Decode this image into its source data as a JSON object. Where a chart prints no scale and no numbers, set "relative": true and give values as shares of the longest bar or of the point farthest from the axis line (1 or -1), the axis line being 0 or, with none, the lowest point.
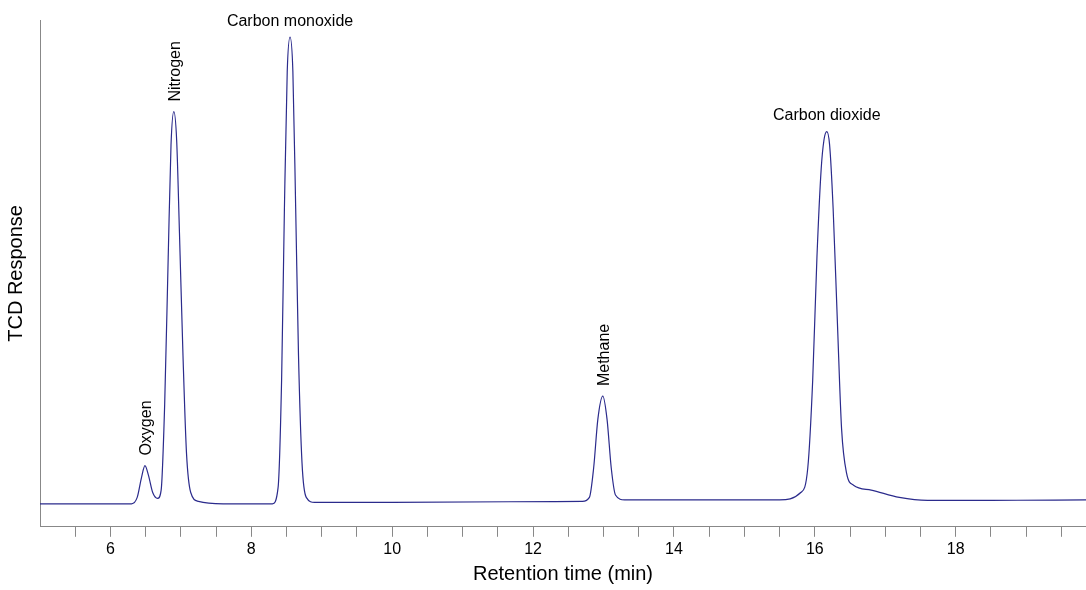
{
  "chart_data": {
    "type": "line",
    "relative": true,
    "xlabel": "Retention time (min)",
    "ylabel": "TCD Response",
    "marker": "none",
    "line_style": "solid",
    "grid": false,
    "legend": false,
    "xlim": [
      5,
      19.85
    ],
    "xticks": [
      {
        "value": 5.5,
        "label": null
      },
      6,
      {
        "value": 6.5,
        "label": null
      },
      {
        "value": 7,
        "label": null
      },
      {
        "value": 7.5,
        "label": null
      },
      8,
      {
        "value": 8.5,
        "label": null
      },
      {
        "value": 9,
        "label": null
      },
      {
        "value": 9.5,
        "label": null
      },
      10,
      {
        "value": 10.5,
        "label": null
      },
      {
        "value": 11,
        "label": null
      },
      {
        "value": 11.5,
        "label": null
      },
      12,
      {
        "value": 12.5,
        "label": null
      },
      {
        "value": 13,
        "label": null
      },
      {
        "value": 13.5,
        "label": null
      },
      14,
      {
        "value": 14.5,
        "label": null
      },
      {
        "value": 15,
        "label": null
      },
      {
        "value": 15.5,
        "label": null
      },
      16,
      {
        "value": 16.5,
        "label": null
      },
      {
        "value": 17,
        "label": null
      },
      {
        "value": 17.5,
        "label": null
      },
      18,
      {
        "value": 18.5,
        "label": null
      },
      {
        "value": 19,
        "label": null
      },
      {
        "value": 19.5,
        "label": null
      }
    ],
    "x": [
      5,
      6.3,
      6.38,
      6.44,
      6.49,
      6.54,
      6.6,
      6.67,
      6.72,
      6.77,
      6.82,
      6.86,
      6.9,
      6.94,
      6.98,
      7.03,
      7.08,
      7.14,
      7.25,
      7.6,
      8.3,
      8.38,
      8.43,
      8.47,
      8.51,
      8.55,
      8.59,
      8.63,
      8.67,
      8.72,
      8.78,
      8.9,
      10,
      12.7,
      12.8,
      12.86,
      12.92,
      12.99,
      13.05,
      13.11,
      13.17,
      13.3,
      15.5,
      15.8,
      15.9,
      15.97,
      16.03,
      16.09,
      16.13,
      16.17,
      16.21,
      16.26,
      16.32,
      16.38,
      16.45,
      16.55,
      16.8,
      17.2,
      17.6,
      18.5,
      19.85
    ],
    "series": [
      {
        "color": "#2b2b8c",
        "values": [
          0.047,
          0.047,
          0.06,
          0.1,
          0.125,
          0.105,
          0.07,
          0.058,
          0.075,
          0.25,
          0.55,
          0.78,
          0.848,
          0.79,
          0.6,
          0.35,
          0.15,
          0.07,
          0.052,
          0.047,
          0.047,
          0.08,
          0.3,
          0.65,
          0.93,
          1,
          0.93,
          0.65,
          0.35,
          0.13,
          0.06,
          0.05,
          0.05,
          0.052,
          0.06,
          0.12,
          0.22,
          0.267,
          0.22,
          0.12,
          0.065,
          0.055,
          0.055,
          0.07,
          0.12,
          0.3,
          0.55,
          0.73,
          0.79,
          0.807,
          0.78,
          0.65,
          0.42,
          0.2,
          0.11,
          0.085,
          0.075,
          0.06,
          0.054,
          0.054,
          0.055
        ]
      }
    ],
    "annotations": [
      {
        "text": "Oxygen",
        "x": 6.49,
        "y": 0.125
      },
      {
        "text": "Nitrogen",
        "x": 6.9,
        "y": 0.848
      },
      {
        "text": "Carbon monoxide",
        "x": 8.55,
        "y": 1
      },
      {
        "text": "Methane",
        "x": 12.99,
        "y": 0.267
      },
      {
        "text": "Carbon dioxide",
        "x": 16.17,
        "y": 0.807
      }
    ]
  }
}
